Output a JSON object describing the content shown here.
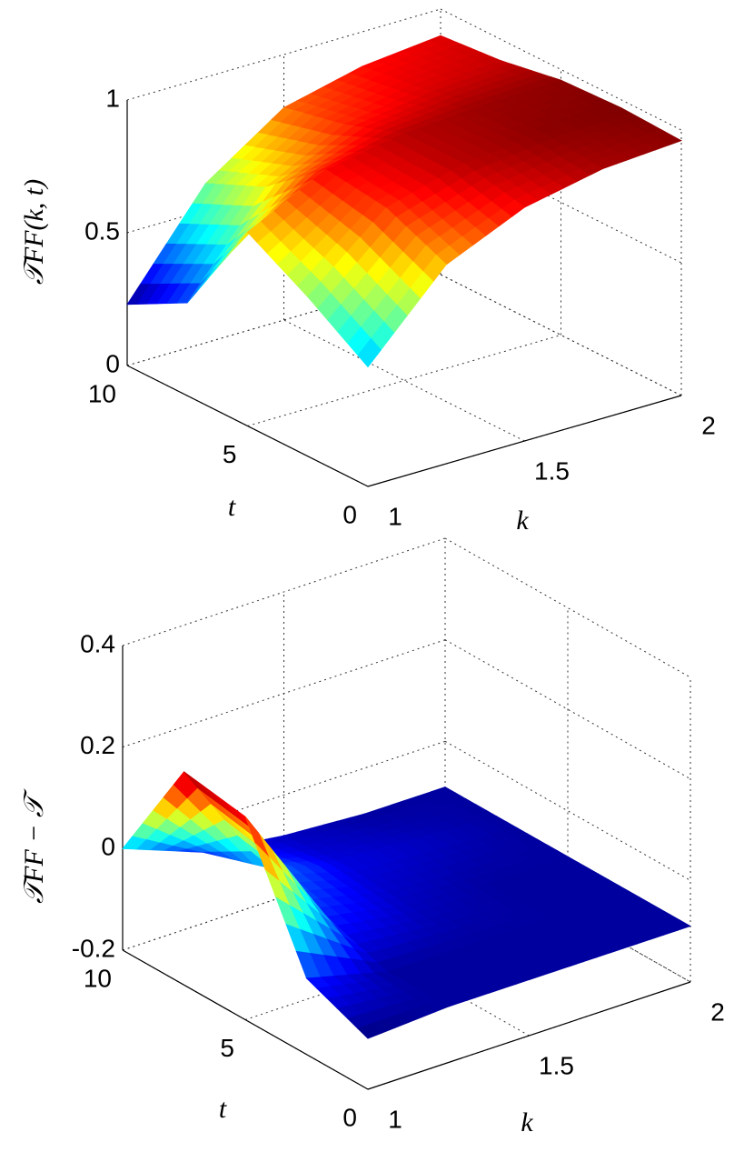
{
  "chart_data": [
    {
      "type": "surface",
      "zlabel": "𝒯FF(k, t)",
      "xlabel": "k",
      "ylabel": "t",
      "colormap": "jet",
      "grid": true,
      "x": [
        1,
        1.25,
        1.5,
        1.75,
        2
      ],
      "y": [
        0,
        2.5,
        5,
        7.5,
        10
      ],
      "z": [
        [
          0.45,
          0.75,
          0.88,
          0.94,
          0.96
        ],
        [
          0.6,
          0.85,
          0.93,
          0.96,
          0.97
        ],
        [
          0.73,
          0.88,
          0.93,
          0.95,
          0.96
        ],
        [
          0.35,
          0.7,
          0.85,
          0.9,
          0.92
        ],
        [
          0.23,
          0.6,
          0.8,
          0.87,
          0.9
        ]
      ],
      "xlim": [
        1,
        2
      ],
      "ylim": [
        0,
        10
      ],
      "zlim": [
        0,
        1
      ],
      "xticks": [
        1,
        1.5,
        2
      ],
      "yticks": [
        0,
        5,
        10
      ],
      "zticks": [
        0,
        0.5,
        1
      ]
    },
    {
      "type": "surface",
      "zlabel": "𝒯FF − 𝒯",
      "xlabel": "k",
      "ylabel": "t",
      "colormap": "jet",
      "grid": true,
      "x": [
        1,
        1.25,
        1.5,
        1.75,
        2
      ],
      "y": [
        0,
        2.5,
        5,
        7.5,
        10
      ],
      "z": [
        [
          -0.1,
          -0.09,
          -0.09,
          -0.09,
          -0.09
        ],
        [
          -0.05,
          -0.09,
          -0.09,
          -0.09,
          -0.09
        ],
        [
          0.2,
          -0.05,
          -0.08,
          -0.09,
          -0.09
        ],
        [
          0.22,
          -0.02,
          -0.07,
          -0.08,
          -0.09
        ],
        [
          0.0,
          -0.06,
          -0.08,
          -0.09,
          -0.09
        ]
      ],
      "xlim": [
        1,
        2
      ],
      "ylim": [
        0,
        10
      ],
      "zlim": [
        -0.2,
        0.4
      ],
      "xticks": [
        1,
        1.5,
        2
      ],
      "yticks": [
        0,
        5,
        10
      ],
      "zticks": [
        -0.2,
        0,
        0.2,
        0.4
      ]
    }
  ]
}
